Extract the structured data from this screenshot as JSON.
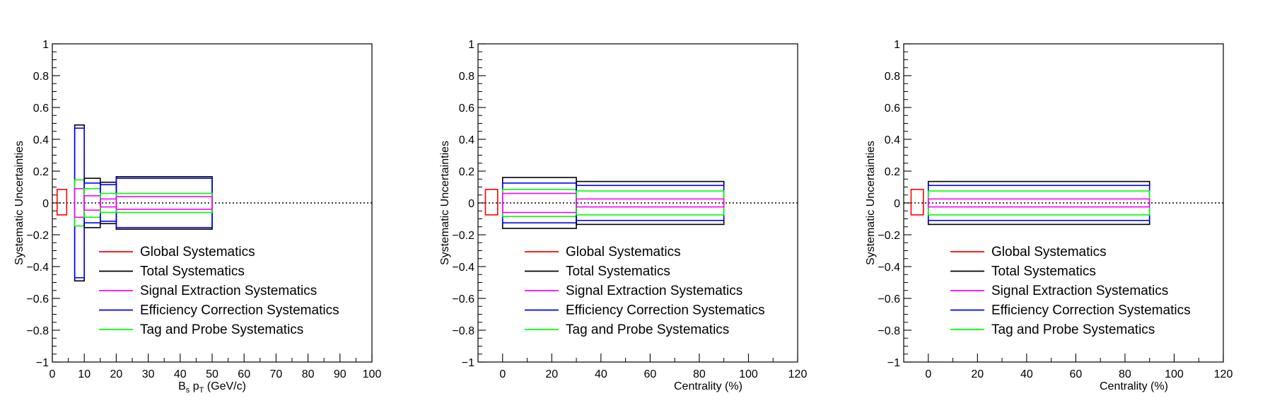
{
  "colors": {
    "global": "#ff0000",
    "total": "#000000",
    "signal": "#ff00ff",
    "efficiency": "#0000ff",
    "tagprobe": "#00ff00"
  },
  "legend_labels": [
    "Global Systematics",
    "Total Systematics",
    "Signal Extraction Systematics",
    "Efficiency Correction Systematics",
    "Tag and Probe Systematics"
  ],
  "chart_data": [
    {
      "type": "box",
      "xlabel": "B_s p_T (GeV/c)",
      "xlabel_main": "B",
      "xlabel_sub1": "s",
      "xlabel_mid": " p",
      "xlabel_sub2": "T",
      "xlabel_tail": " (GeV/c)",
      "ylabel": "Systematic Uncertainties",
      "xlim": [
        0,
        100
      ],
      "ylim": [
        -1,
        1
      ],
      "xticks": [
        0,
        10,
        20,
        30,
        40,
        50,
        60,
        70,
        80,
        90,
        100
      ],
      "xminor": 2,
      "yticks": [
        -1,
        -0.8,
        -0.6,
        -0.4,
        -0.2,
        0,
        0.2,
        0.4,
        0.6,
        0.8,
        1
      ],
      "ytick_labels": [
        "−1",
        "−0.8",
        "−0.6",
        "−0.4",
        "−0.2",
        "0",
        "0.2",
        "0.4",
        "0.6",
        "0.8",
        "1"
      ],
      "global_box": {
        "x": [
          1.5,
          4.5
        ],
        "y": [
          -0.075,
          0.085
        ]
      },
      "bins": [
        {
          "x": [
            7,
            10
          ],
          "total": 0.49,
          "efficiency": 0.47,
          "tagprobe": 0.145,
          "signal": 0.09
        },
        {
          "x": [
            10,
            15
          ],
          "total": 0.155,
          "efficiency": 0.125,
          "tagprobe": 0.09,
          "signal": 0.045
        },
        {
          "x": [
            15,
            20
          ],
          "total": 0.13,
          "efficiency": 0.115,
          "tagprobe": 0.06,
          "signal": 0.025
        },
        {
          "x": [
            20,
            50
          ],
          "total": 0.165,
          "efficiency": 0.155,
          "tagprobe": 0.06,
          "signal": 0.04
        }
      ],
      "legend": [
        "Global Systematics",
        "Total Systematics",
        "Signal Extraction Systematics",
        "Efficiency Correction Systematics",
        "Tag and Probe Systematics"
      ]
    },
    {
      "type": "box",
      "xlabel": "Centrality (%)",
      "ylabel": "Systematic Uncertainties",
      "xlim": [
        -10,
        120
      ],
      "ylim": [
        -1,
        1
      ],
      "xticks": [
        0,
        20,
        40,
        60,
        80,
        100,
        120
      ],
      "xminor": 2,
      "yticks": [
        -1,
        -0.8,
        -0.6,
        -0.4,
        -0.2,
        0,
        0.2,
        0.4,
        0.6,
        0.8,
        1
      ],
      "ytick_labels": [
        "−1",
        "−0.8",
        "−0.6",
        "−0.4",
        "−0.2",
        "0",
        "0.2",
        "0.4",
        "0.6",
        "0.8",
        "1"
      ],
      "global_box": {
        "x": [
          -7,
          -2
        ],
        "y": [
          -0.075,
          0.085
        ]
      },
      "bins": [
        {
          "x": [
            0,
            30
          ],
          "total": 0.16,
          "efficiency": 0.125,
          "tagprobe": 0.085,
          "signal": 0.06
        },
        {
          "x": [
            30,
            90
          ],
          "total": 0.135,
          "efficiency": 0.11,
          "tagprobe": 0.075,
          "signal": 0.025
        }
      ],
      "legend": [
        "Global Systematics",
        "Total Systematics",
        "Signal Extraction Systematics",
        "Efficiency Correction Systematics",
        "Tag and Probe Systematics"
      ]
    },
    {
      "type": "box",
      "xlabel": "Centrality (%)",
      "ylabel": "Systematic Uncertainties",
      "xlim": [
        -10,
        120
      ],
      "ylim": [
        -1,
        1
      ],
      "xticks": [
        0,
        20,
        40,
        60,
        80,
        100,
        120
      ],
      "xminor": 2,
      "yticks": [
        -1,
        -0.8,
        -0.6,
        -0.4,
        -0.2,
        0,
        0.2,
        0.4,
        0.6,
        0.8,
        1
      ],
      "ytick_labels": [
        "−1",
        "−0.8",
        "−0.6",
        "−0.4",
        "−0.2",
        "0",
        "0.2",
        "0.4",
        "0.6",
        "0.8",
        "1"
      ],
      "global_box": {
        "x": [
          -7,
          -2
        ],
        "y": [
          -0.075,
          0.085
        ]
      },
      "bins": [
        {
          "x": [
            0,
            90
          ],
          "total": 0.135,
          "efficiency": 0.11,
          "tagprobe": 0.075,
          "signal": 0.025
        }
      ],
      "legend": [
        "Global Systematics",
        "Total Systematics",
        "Signal Extraction Systematics",
        "Efficiency Correction Systematics",
        "Tag and Probe Systematics"
      ]
    }
  ]
}
